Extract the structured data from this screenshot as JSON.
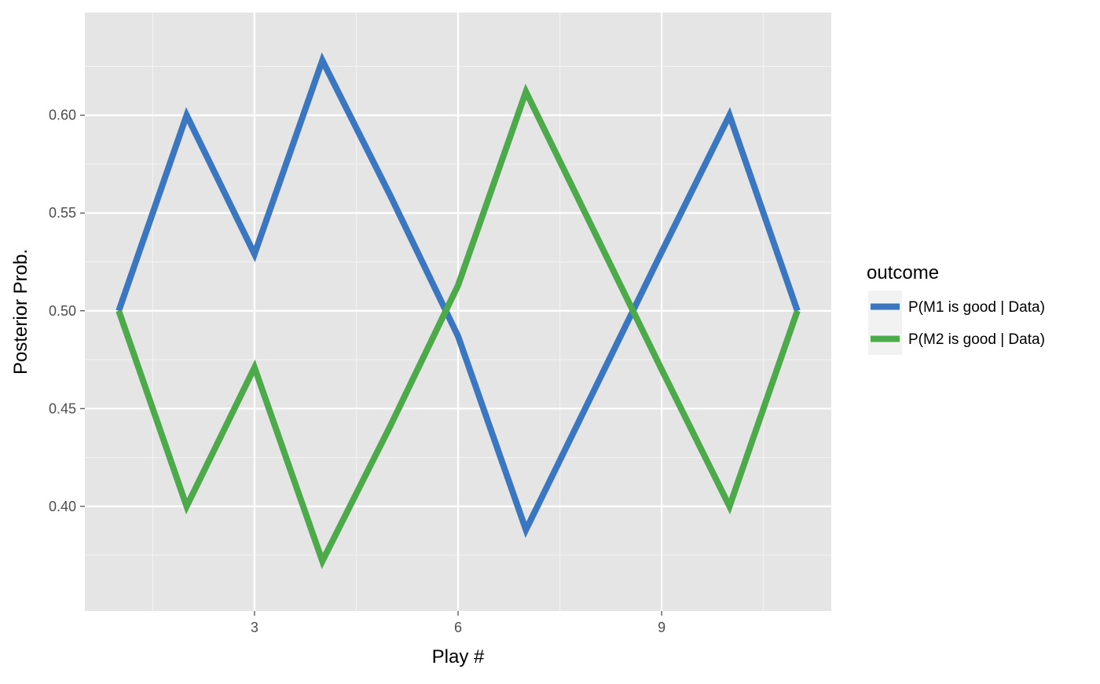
{
  "chart_data": {
    "type": "line",
    "title": "",
    "xlabel": "Play #",
    "ylabel": "Posterior Prob.",
    "x": [
      1,
      2,
      3,
      4,
      5,
      6,
      7,
      8,
      9,
      10,
      11
    ],
    "xlim": [
      0.5,
      11.5
    ],
    "ylim": [
      0.3465,
      0.6525
    ],
    "x_ticks": [
      3,
      6,
      9
    ],
    "x_tick_labels": [
      "3",
      "6",
      "9"
    ],
    "y_ticks": [
      0.4,
      0.45,
      0.5,
      0.55,
      0.6
    ],
    "y_tick_labels": [
      "0.40",
      "0.45",
      "0.50",
      "0.55",
      "0.60"
    ],
    "grid": true,
    "legend_title": "outcome",
    "legend_position": "right",
    "series": [
      {
        "name": "P(M1 is good | Data)",
        "color": "#3a77c0",
        "values": [
          0.5,
          0.6,
          0.529,
          0.628,
          0.559,
          0.487,
          0.388,
          0.459,
          0.53,
          0.6,
          0.5
        ]
      },
      {
        "name": "P(M2 is good | Data)",
        "color": "#4daa4a",
        "values": [
          0.5,
          0.4,
          0.471,
          0.372,
          0.441,
          0.513,
          0.612,
          0.541,
          0.47,
          0.4,
          0.5
        ]
      }
    ]
  }
}
